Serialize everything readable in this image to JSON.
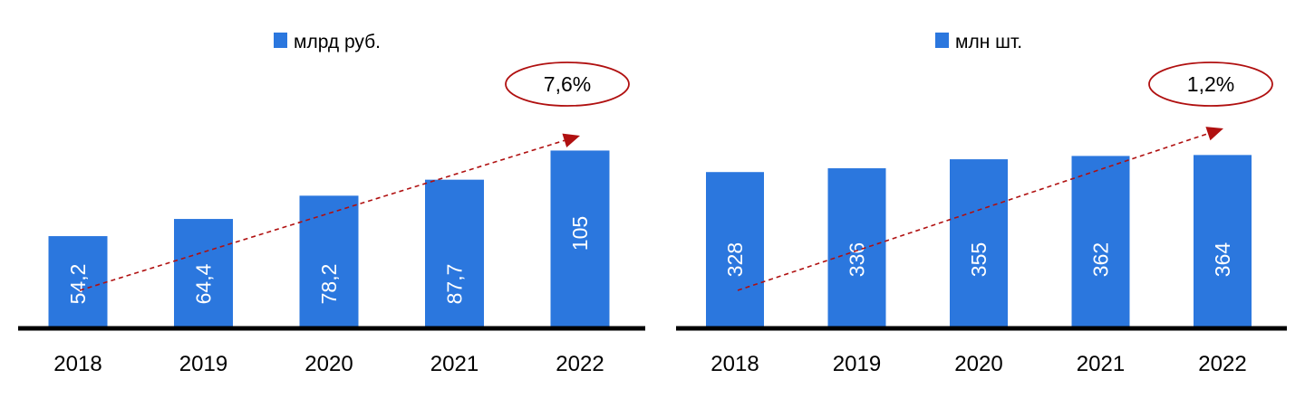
{
  "chart_data": [
    {
      "type": "bar",
      "categories": [
        "2018",
        "2019",
        "2020",
        "2021",
        "2022"
      ],
      "series": [
        {
          "name": "млрд руб.",
          "values": [
            54.2,
            64.4,
            78.2,
            87.7,
            105
          ]
        }
      ],
      "value_labels": [
        "54,2",
        "64,4",
        "78,2",
        "87,7",
        "105"
      ],
      "trend_label": "7,6%",
      "ylim": [
        0,
        160
      ],
      "legend": "top-center",
      "grid": false,
      "bar_color": "#2b77de",
      "trend_color": "#b01010"
    },
    {
      "type": "bar",
      "categories": [
        "2018",
        "2019",
        "2020",
        "2021",
        "2022"
      ],
      "series": [
        {
          "name": "млн шт.",
          "values": [
            328,
            336,
            355,
            362,
            364
          ]
        }
      ],
      "value_labels": [
        "328",
        "336",
        "355",
        "362",
        "364"
      ],
      "trend_label": "1,2%",
      "ylim": [
        0,
        569
      ],
      "legend": "top-center",
      "grid": false,
      "bar_color": "#2b77de",
      "trend_color": "#b01010"
    }
  ]
}
